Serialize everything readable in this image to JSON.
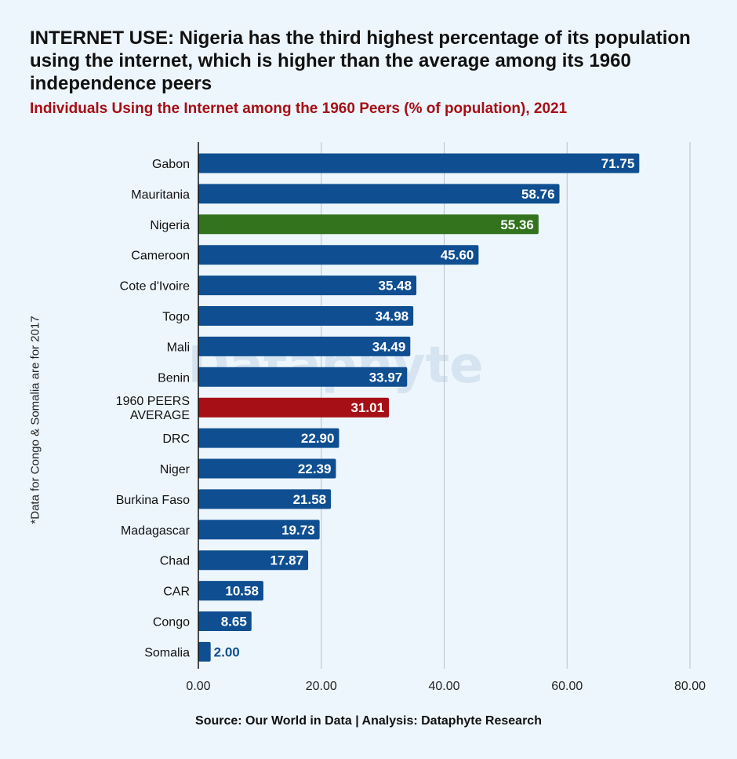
{
  "title": "INTERNET USE: Nigeria has the third highest percentage of its population using the internet, which is higher than the average among its 1960 independence peers",
  "subtitle": "Individuals Using the Internet among the 1960 Peers (% of population), 2021",
  "side_note": "*Data for Congo & Somalia are for 2017",
  "source": "Source: Our World in Data | Analysis: Dataphyte Research",
  "watermark": "Dataphyte",
  "colors": {
    "default_bar": "#0f4f91",
    "highlight_bar": "#33731e",
    "average_bar": "#a50f15",
    "subtitle": "#a50f15",
    "grid": "#b7bfc9",
    "background": "#eef6fd"
  },
  "chart_data": {
    "type": "bar",
    "orientation": "horizontal",
    "grid": true,
    "xlim": [
      0,
      80
    ],
    "x_ticks": [
      "0.00",
      "20.00",
      "40.00",
      "60.00",
      "80.00"
    ],
    "categories": [
      "Gabon",
      "Mauritania",
      "Nigeria",
      "Cameroon",
      "Cote d'Ivoire",
      "Togo",
      "Mali",
      "Benin",
      "1960 PEERS AVERAGE",
      "DRC",
      "Niger",
      "Burkina Faso",
      "Madagascar",
      "Chad",
      "CAR",
      "Congo",
      "Somalia"
    ],
    "values": [
      71.75,
      58.76,
      55.36,
      45.6,
      35.48,
      34.98,
      34.49,
      33.97,
      31.01,
      22.9,
      22.39,
      21.58,
      19.73,
      17.87,
      10.58,
      8.65,
      2.0
    ],
    "data_labels": [
      "71.75",
      "58.76",
      "55.36",
      "45.60",
      "35.48",
      "34.98",
      "34.49",
      "33.97",
      "31.01",
      "22.90",
      "22.39",
      "21.58",
      "19.73",
      "17.87",
      "10.58",
      "8.65",
      "2.00"
    ],
    "highlight": {
      "Nigeria": "highlight_bar",
      "1960 PEERS AVERAGE": "average_bar"
    }
  }
}
